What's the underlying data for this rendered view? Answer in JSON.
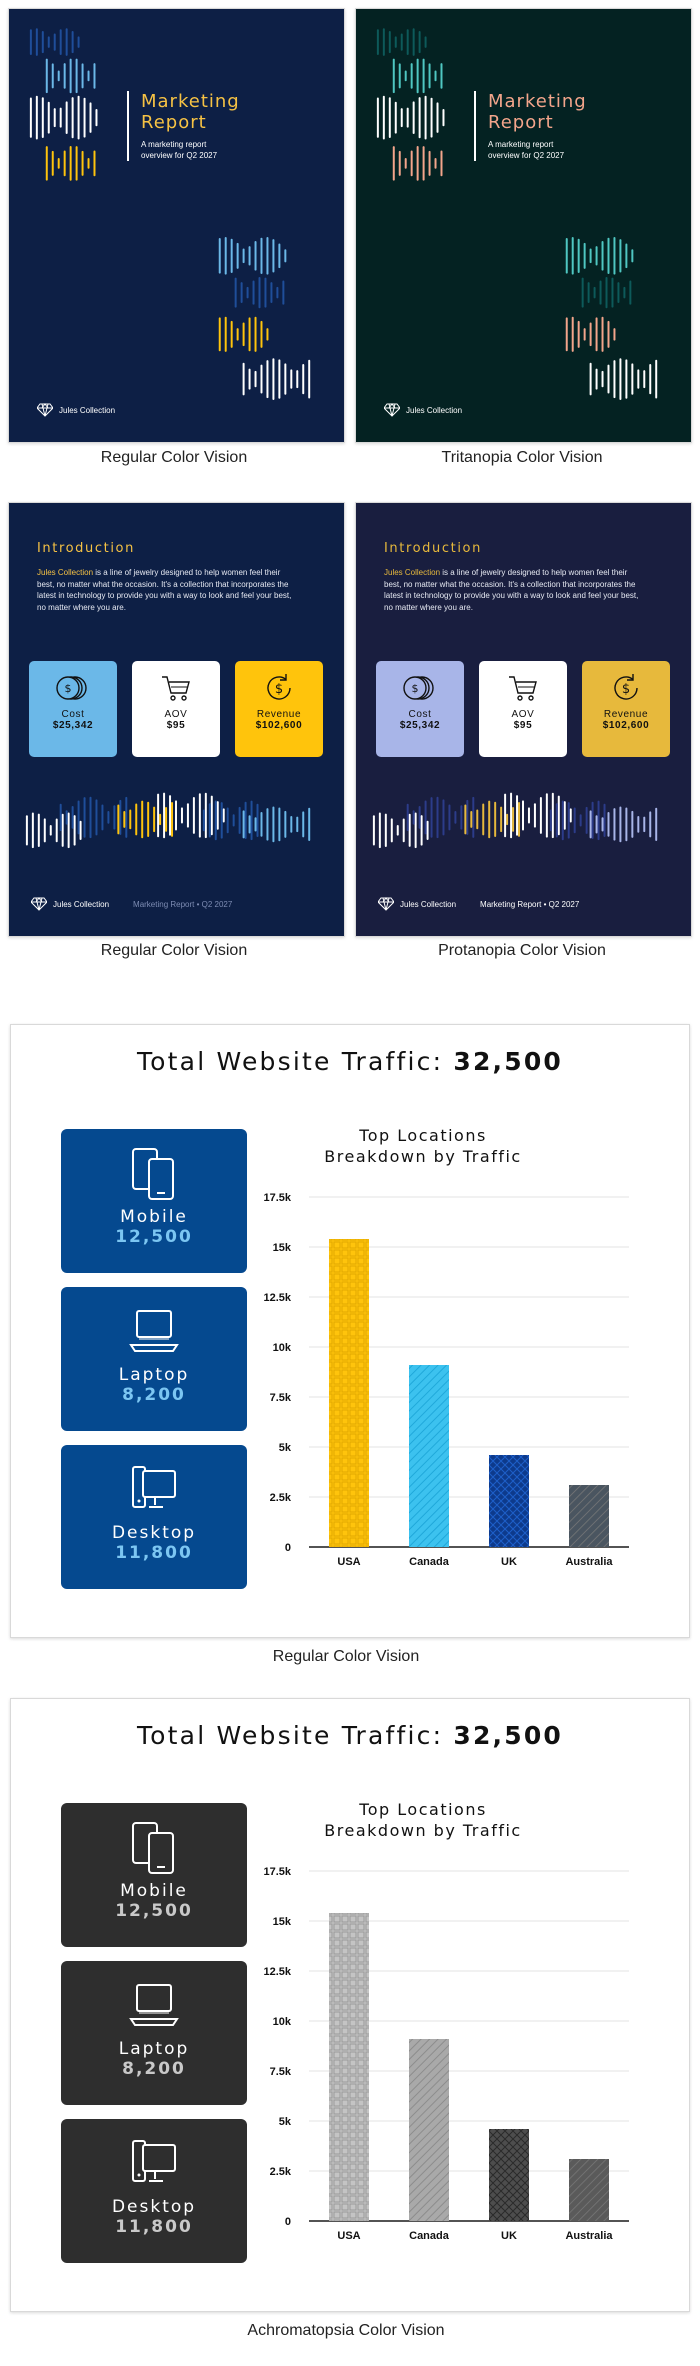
{
  "cover": {
    "title_line1": "Marketing",
    "title_line2": "Report",
    "subtitle_line1": "A marketing report",
    "subtitle_line2": "overview for Q2 2027",
    "brand": "Jules Collection"
  },
  "intro": {
    "heading": "Introduction",
    "highlight": "Jules Collection",
    "text": " is a line of jewelry designed to help women feel their best, no matter what the occasion. It's a collection that incorporates the latest in technology to provide you with a way to look and feel your best, no matter where you are.",
    "footer_brand": "Jules Collection",
    "footer_sub": "Marketing Report • Q2 2027",
    "metrics": [
      {
        "label": "Cost",
        "value": "$25,342",
        "icon": "coins-icon"
      },
      {
        "label": "AOV",
        "value": "$95",
        "icon": "cart-icon"
      },
      {
        "label": "Revenue",
        "value": "$102,600",
        "icon": "dollar-cycle-icon"
      }
    ]
  },
  "dashboard": {
    "title_prefix": "Total Website Traffic: ",
    "title_value": "32,500",
    "cards": [
      {
        "label": "Mobile",
        "value": "12,500",
        "icon": "mobile-devices-icon"
      },
      {
        "label": "Laptop",
        "value": "8,200",
        "icon": "laptop-icon"
      },
      {
        "label": "Desktop",
        "value": "11,800",
        "icon": "desktop-icon"
      }
    ],
    "chart_title_line1": "Top Locations",
    "chart_title_line2": "Breakdown by Traffic"
  },
  "chart_data": [
    {
      "type": "bar",
      "title": "Top Locations Breakdown by Traffic",
      "categories": [
        "USA",
        "Canada",
        "UK",
        "Australia"
      ],
      "values": [
        15400,
        9100,
        4600,
        3100
      ],
      "ylim": [
        0,
        17500
      ],
      "yticks": [
        "0",
        "2.5k",
        "5k",
        "7.5k",
        "10k",
        "12.5k",
        "15k",
        "17.5k"
      ],
      "grid": true,
      "bar_colors": [
        "#ffc40c",
        "#3cc2ef",
        "#0d3a8c",
        "#4a5560"
      ]
    },
    {
      "type": "bar",
      "title": "Top Locations Breakdown by Traffic",
      "categories": [
        "USA",
        "Canada",
        "UK",
        "Australia"
      ],
      "values": [
        15400,
        9100,
        4600,
        3100
      ],
      "ylim": [
        0,
        17500
      ],
      "yticks": [
        "0",
        "2.5k",
        "5k",
        "7.5k",
        "10k",
        "12.5k",
        "15k",
        "17.5k"
      ],
      "grid": true,
      "bar_colors": [
        "#c4c4c4",
        "#a9a9a9",
        "#4d4d4d",
        "#5a5a5a"
      ]
    }
  ],
  "captions": {
    "regular": "Regular Color Vision",
    "tritanopia": "Tritanopia Color Vision",
    "protanopia": "Protanopia Color Vision",
    "achromatopsia": "Achromatopsia Color Vision"
  },
  "colors": {
    "navy": "#0d1f45",
    "dark_green": "#042222",
    "protan_navy": "#191e3f",
    "yellow": "#ffc40c",
    "orange_title": "#f6c244",
    "salmon_title": "#f3a58b",
    "traffic_blue": "#05498f",
    "traffic_dark": "#2e2e2e"
  }
}
